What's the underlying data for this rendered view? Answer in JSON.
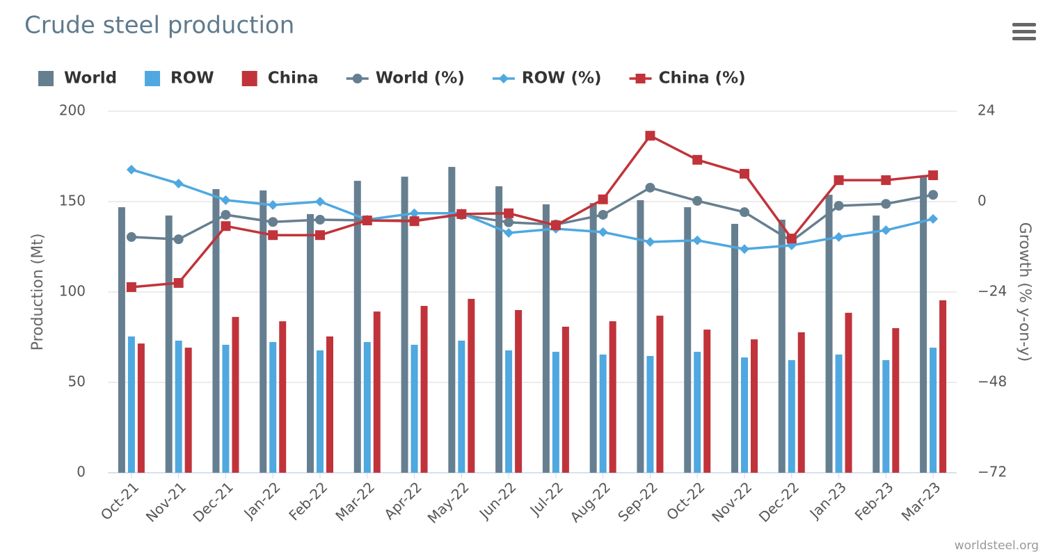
{
  "chart_data": {
    "type": "bar",
    "title": "Crude steel production",
    "credit": "worldsteel.org",
    "y_label": "Production (Mt)",
    "y2_label": "Growth (% y-on-y)",
    "categories": [
      "Oct-21",
      "Nov-21",
      "Dec-21",
      "Jan-22",
      "Feb-22",
      "Mar-22",
      "Apr-22",
      "May-22",
      "Jun-22",
      "Jul-22",
      "Aug-22",
      "Sep-22",
      "Oct-22",
      "Nov-22",
      "Dec-22",
      "Jan-23",
      "Feb-23",
      "Mar-23"
    ],
    "ylim": [
      0,
      200
    ],
    "yticks": [
      0,
      50,
      100,
      150,
      200
    ],
    "y2lim": [
      -72,
      24
    ],
    "y2ticks": [
      {
        "value": -72,
        "label": "−72"
      },
      {
        "value": -48,
        "label": "−48"
      },
      {
        "value": -24,
        "label": "−24"
      },
      0,
      24
    ],
    "grid": true,
    "series": [
      {
        "name": "World",
        "type": "bar",
        "color": "#667f90",
        "values": [
          146.9,
          142.3,
          156.9,
          156.2,
          143.1,
          161.5,
          163.8,
          169.2,
          158.5,
          148.5,
          149.2,
          150.8,
          146.9,
          137.7,
          140,
          153.8,
          142.3,
          163.8
        ]
      },
      {
        "name": "ROW",
        "type": "bar",
        "color": "#4fa8e0",
        "values": [
          75.4,
          73.1,
          70.8,
          72.3,
          67.7,
          72.3,
          70.8,
          73.1,
          67.7,
          66.9,
          65.4,
          64.6,
          66.9,
          63.8,
          62.3,
          65.4,
          62.3,
          69.2
        ]
      },
      {
        "name": "China",
        "type": "bar",
        "color": "#c1333a",
        "values": [
          71.5,
          69.2,
          86.2,
          83.8,
          75.4,
          89.2,
          92.3,
          96.2,
          90,
          80.8,
          83.8,
          86.9,
          79.2,
          73.8,
          77.7,
          88.5,
          80,
          95.4
        ]
      },
      {
        "name": "World (%)",
        "type": "line",
        "marker": "circle",
        "axis": "y2",
        "color": "#667f90",
        "values": [
          -9.4,
          -10,
          -3.5,
          -5.4,
          -4.8,
          -5,
          -5,
          -3.5,
          -5.5,
          -6.1,
          -3.5,
          3.7,
          0.2,
          -2.8,
          -10.5,
          -1.1,
          -0.6,
          1.8
        ]
      },
      {
        "name": "ROW (%)",
        "type": "line",
        "marker": "diamond",
        "axis": "y2",
        "color": "#4fa8e0",
        "values": [
          8.5,
          4.8,
          0.4,
          -0.9,
          0,
          -4.8,
          -3.1,
          -3.1,
          -8.3,
          -7.2,
          -8.1,
          -10.7,
          -10.3,
          -12.6,
          -11.6,
          -9.4,
          -7.6,
          -4.6
        ]
      },
      {
        "name": "China (%)",
        "type": "line",
        "marker": "square",
        "axis": "y2",
        "color": "#c1333a",
        "values": [
          -22.7,
          -21.6,
          -6.5,
          -8.9,
          -8.9,
          -5,
          -5.2,
          -3.3,
          -3.1,
          -6.3,
          0.6,
          17.5,
          11.1,
          7.4,
          -9.8,
          5.7,
          5.7,
          7
        ]
      }
    ]
  }
}
